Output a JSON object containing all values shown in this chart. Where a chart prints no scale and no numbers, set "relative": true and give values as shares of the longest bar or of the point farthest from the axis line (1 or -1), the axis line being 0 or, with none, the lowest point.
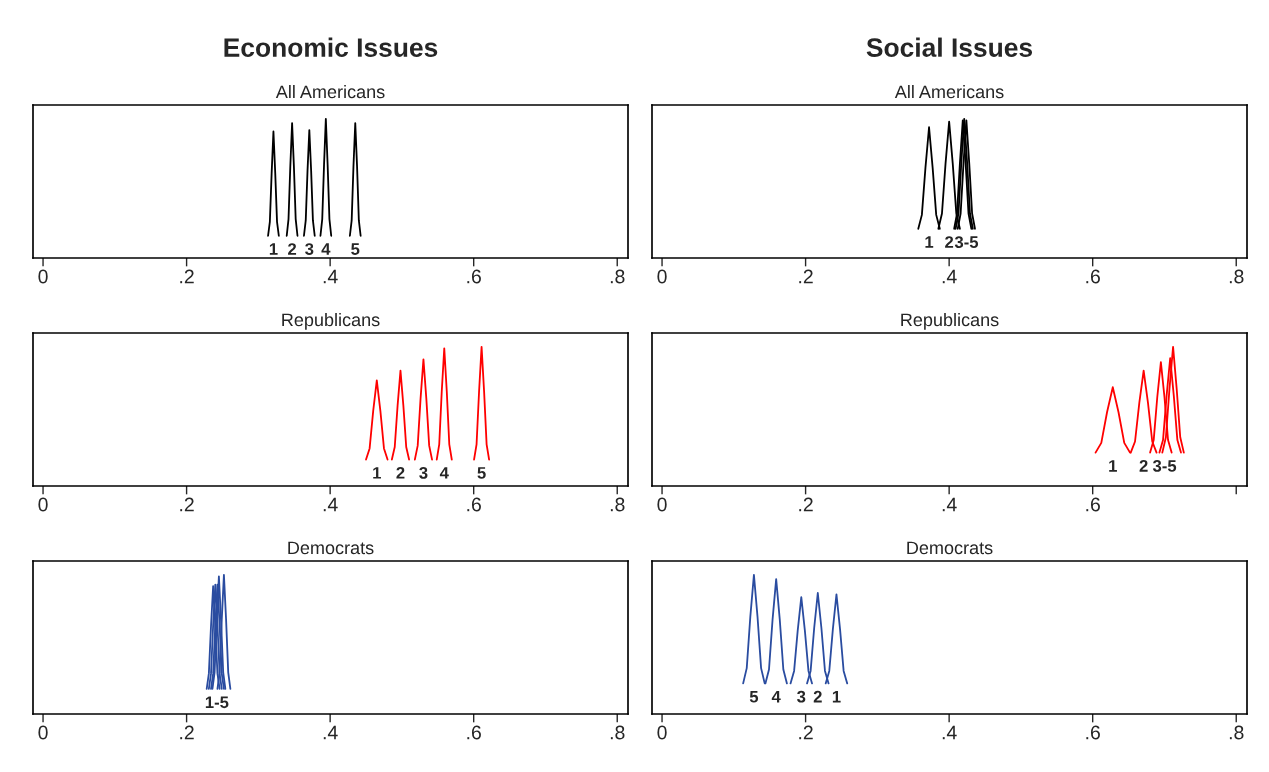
{
  "chart_data": [
    {
      "type": "line",
      "title": "Economic Issues",
      "subtitle": "All Americans",
      "relative": true,
      "xlim": [
        -0.014,
        0.815
      ],
      "xticks": [
        0,
        {
          "value": 0.2,
          "label": ".2"
        },
        {
          "value": 0.4,
          "label": ".4"
        },
        {
          "value": 0.6,
          "label": ".6"
        },
        {
          "value": 0.8,
          "label": ".8"
        }
      ],
      "series": [
        {
          "color": "#000000",
          "x": [
            0.3135,
            0.316,
            0.3185,
            0.321,
            0.3235,
            0.326,
            0.3285
          ],
          "values": [
            0.16,
            0.26,
            0.61,
            0.91,
            0.61,
            0.26,
            0.16
          ]
        },
        {
          "color": "#000000",
          "x": [
            0.3395,
            0.342,
            0.3445,
            0.347,
            0.3495,
            0.352,
            0.3545
          ],
          "values": [
            0.16,
            0.28,
            0.66,
            0.97,
            0.66,
            0.28,
            0.16
          ]
        },
        {
          "color": "#000000",
          "x": [
            0.3635,
            0.366,
            0.3685,
            0.371,
            0.3735,
            0.376,
            0.3785
          ],
          "values": [
            0.16,
            0.27,
            0.63,
            0.92,
            0.63,
            0.27,
            0.16
          ]
        },
        {
          "color": "#000000",
          "x": [
            0.3865,
            0.389,
            0.3915,
            0.394,
            0.3965,
            0.399,
            0.4015
          ],
          "values": [
            0.16,
            0.28,
            0.67,
            1,
            0.67,
            0.28,
            0.16
          ]
        },
        {
          "color": "#000000",
          "x": [
            0.4275,
            0.43,
            0.4325,
            0.435,
            0.4375,
            0.44,
            0.4425
          ],
          "values": [
            0.16,
            0.27,
            0.66,
            0.97,
            0.66,
            0.27,
            0.16
          ]
        }
      ],
      "annotations": [
        "1",
        "2",
        "3",
        "4",
        "5"
      ]
    },
    {
      "type": "line",
      "title": "Social Issues",
      "subtitle": "All Americans",
      "relative": true,
      "xlim": [
        -0.014,
        0.815
      ],
      "xticks": [
        0,
        {
          "value": 0.2,
          "label": ".2"
        },
        {
          "value": 0.4,
          "label": ".4"
        },
        {
          "value": 0.6,
          "label": ".6"
        },
        {
          "value": 0.8,
          "label": ".8"
        }
      ],
      "series": [
        {
          "color": "#000000",
          "x": [
            0.357,
            0.362,
            0.367,
            0.372,
            0.377,
            0.382,
            0.387
          ],
          "values": [
            0.21,
            0.31,
            0.65,
            0.94,
            0.65,
            0.31,
            0.21
          ]
        },
        {
          "color": "#000000",
          "x": [
            0.385,
            0.39,
            0.395,
            0.4,
            0.405,
            0.41,
            0.415
          ],
          "values": [
            0.21,
            0.32,
            0.68,
            0.98,
            0.68,
            0.32,
            0.21
          ]
        },
        {
          "color": "#000000",
          "x": [
            0.407,
            0.411,
            0.415,
            0.419,
            0.423,
            0.427,
            0.431
          ],
          "values": [
            0.21,
            0.32,
            0.68,
            0.99,
            0.68,
            0.32,
            0.21
          ]
        },
        {
          "color": "#000000",
          "x": [
            0.409,
            0.413,
            0.417,
            0.421,
            0.425,
            0.429,
            0.433
          ],
          "values": [
            0.21,
            0.32,
            0.69,
            1,
            0.69,
            0.32,
            0.21
          ]
        },
        {
          "color": "#000000",
          "x": [
            0.412,
            0.416,
            0.42,
            0.424,
            0.428,
            0.432,
            0.436
          ],
          "values": [
            0.21,
            0.32,
            0.68,
            0.99,
            0.68,
            0.32,
            0.21
          ]
        }
      ],
      "annotations": [
        "1",
        "2",
        "3-5"
      ]
    },
    {
      "type": "line",
      "title": "Republicans",
      "relative": true,
      "xlim": [
        -0.014,
        0.815
      ],
      "xticks": [
        0,
        {
          "value": 0.2,
          "label": ".2"
        },
        {
          "value": 0.4,
          "label": ".4"
        },
        {
          "value": 0.6,
          "label": ".6"
        },
        {
          "value": 0.8,
          "label": ".8"
        }
      ],
      "series": [
        {
          "color": "#ff0000",
          "x": [
            0.45,
            0.455,
            0.46,
            0.465,
            0.47,
            0.475,
            0.48
          ],
          "values": [
            0.19,
            0.27,
            0.54,
            0.76,
            0.54,
            0.27,
            0.19
          ]
        },
        {
          "color": "#ff0000",
          "x": [
            0.486,
            0.49,
            0.494,
            0.498,
            0.502,
            0.506,
            0.51
          ],
          "values": [
            0.19,
            0.28,
            0.58,
            0.83,
            0.58,
            0.28,
            0.19
          ]
        },
        {
          "color": "#ff0000",
          "x": [
            0.518,
            0.522,
            0.526,
            0.53,
            0.534,
            0.538,
            0.542
          ],
          "values": [
            0.19,
            0.29,
            0.63,
            0.91,
            0.63,
            0.29,
            0.19
          ]
        },
        {
          "color": "#ff0000",
          "x": [
            0.5485,
            0.552,
            0.5555,
            0.559,
            0.5625,
            0.566,
            0.5695
          ],
          "values": [
            0.19,
            0.3,
            0.68,
            0.99,
            0.68,
            0.3,
            0.19
          ]
        },
        {
          "color": "#ff0000",
          "x": [
            0.6005,
            0.604,
            0.6075,
            0.611,
            0.6145,
            0.618,
            0.6215
          ],
          "values": [
            0.19,
            0.3,
            0.68,
            1,
            0.68,
            0.3,
            0.19
          ]
        }
      ],
      "annotations": [
        "1",
        "2",
        "3",
        "4",
        "5"
      ]
    },
    {
      "type": "line",
      "title": "Republicans",
      "relative": true,
      "xlim": [
        -0.014,
        0.815
      ],
      "xticks": [
        0,
        {
          "value": 0.2,
          "label": ".2"
        },
        {
          "value": 0.4,
          "label": ".4"
        },
        {
          "value": 0.6,
          "label": ".6"
        },
        {
          "value": 0.8,
          "label": null
        }
      ],
      "series": [
        {
          "color": "#ff0000",
          "x": [
            0.604,
            0.612,
            0.62,
            0.628,
            0.636,
            0.644,
            0.652
          ],
          "values": [
            0.24,
            0.31,
            0.53,
            0.71,
            0.53,
            0.31,
            0.24
          ]
        },
        {
          "color": "#ff0000",
          "x": [
            0.653,
            0.659,
            0.665,
            0.671,
            0.677,
            0.683,
            0.689
          ],
          "values": [
            0.24,
            0.32,
            0.6,
            0.83,
            0.6,
            0.32,
            0.24
          ]
        },
        {
          "color": "#ff0000",
          "x": [
            0.68,
            0.685,
            0.69,
            0.695,
            0.7,
            0.705,
            0.71
          ],
          "values": [
            0.24,
            0.33,
            0.64,
            0.89,
            0.64,
            0.33,
            0.24
          ]
        },
        {
          "color": "#ff0000",
          "x": [
            0.693,
            0.698,
            0.703,
            0.708,
            0.713,
            0.718,
            0.723
          ],
          "values": [
            0.24,
            0.33,
            0.65,
            0.92,
            0.65,
            0.33,
            0.24
          ]
        },
        {
          "color": "#ff0000",
          "x": [
            0.697,
            0.702,
            0.707,
            0.712,
            0.717,
            0.722,
            0.727
          ],
          "values": [
            0.24,
            0.35,
            0.7,
            1,
            0.7,
            0.35,
            0.24
          ]
        }
      ],
      "annotations": [
        "1",
        "2",
        "3-5"
      ]
    },
    {
      "type": "line",
      "title": "Democrats",
      "relative": true,
      "xlim": [
        -0.014,
        0.815
      ],
      "xticks": [
        0,
        {
          "value": 0.2,
          "label": ".2"
        },
        {
          "value": 0.4,
          "label": ".4"
        },
        {
          "value": 0.6,
          "label": ".6"
        },
        {
          "value": 0.8,
          "label": ".8"
        }
      ],
      "series": [
        {
          "color": "#2a4ca0",
          "x": [
            0.228,
            0.231,
            0.234,
            0.237,
            0.24,
            0.243,
            0.246
          ],
          "values": [
            0.18,
            0.29,
            0.63,
            0.92,
            0.63,
            0.29,
            0.18
          ]
        },
        {
          "color": "#2a4ca0",
          "x": [
            0.231,
            0.234,
            0.237,
            0.24,
            0.243,
            0.246,
            0.249
          ],
          "values": [
            0.18,
            0.29,
            0.64,
            0.93,
            0.64,
            0.29,
            0.18
          ]
        },
        {
          "color": "#2a4ca0",
          "x": [
            0.234,
            0.237,
            0.24,
            0.243,
            0.246,
            0.249,
            0.252
          ],
          "values": [
            0.18,
            0.29,
            0.64,
            0.93,
            0.64,
            0.29,
            0.18
          ]
        },
        {
          "color": "#2a4ca0",
          "x": [
            0.236,
            0.239,
            0.242,
            0.245,
            0.248,
            0.251,
            0.254
          ],
          "values": [
            0.18,
            0.3,
            0.67,
            0.99,
            0.67,
            0.3,
            0.18
          ]
        },
        {
          "color": "#2a4ca0",
          "x": [
            0.243,
            0.246,
            0.249,
            0.252,
            0.255,
            0.258,
            0.261
          ],
          "values": [
            0.18,
            0.3,
            0.68,
            1,
            0.68,
            0.3,
            0.18
          ]
        }
      ],
      "annotations": [
        "1-5"
      ]
    },
    {
      "type": "line",
      "title": "Democrats",
      "relative": true,
      "xlim": [
        -0.014,
        0.815
      ],
      "xticks": [
        0,
        {
          "value": 0.2,
          "label": ".2"
        },
        {
          "value": 0.4,
          "label": ".4"
        },
        {
          "value": 0.6,
          "label": ".6"
        },
        {
          "value": 0.8,
          "label": ".8"
        }
      ],
      "series": [
        {
          "color": "#2a4ca0",
          "x": [
            0.113,
            0.118,
            0.123,
            0.128,
            0.133,
            0.138,
            0.143
          ],
          "values": [
            0.22,
            0.33,
            0.7,
            1,
            0.7,
            0.33,
            0.22
          ]
        },
        {
          "color": "#2a4ca0",
          "x": [
            0.144,
            0.149,
            0.154,
            0.159,
            0.164,
            0.169,
            0.174
          ],
          "values": [
            0.22,
            0.32,
            0.68,
            0.97,
            0.68,
            0.32,
            0.22
          ]
        },
        {
          "color": "#2a4ca0",
          "x": [
            0.179,
            0.184,
            0.189,
            0.194,
            0.199,
            0.204,
            0.209
          ],
          "values": [
            0.22,
            0.31,
            0.6,
            0.84,
            0.6,
            0.31,
            0.22
          ]
        },
        {
          "color": "#2a4ca0",
          "x": [
            0.202,
            0.207,
            0.212,
            0.217,
            0.222,
            0.227,
            0.232
          ],
          "values": [
            0.22,
            0.31,
            0.62,
            0.87,
            0.62,
            0.31,
            0.22
          ]
        },
        {
          "color": "#2a4ca0",
          "x": [
            0.228,
            0.233,
            0.238,
            0.243,
            0.248,
            0.253,
            0.258
          ],
          "values": [
            0.22,
            0.31,
            0.61,
            0.86,
            0.61,
            0.31,
            0.22
          ]
        }
      ],
      "annotations": [
        "5",
        "4",
        "3",
        "2",
        "1"
      ]
    }
  ]
}
